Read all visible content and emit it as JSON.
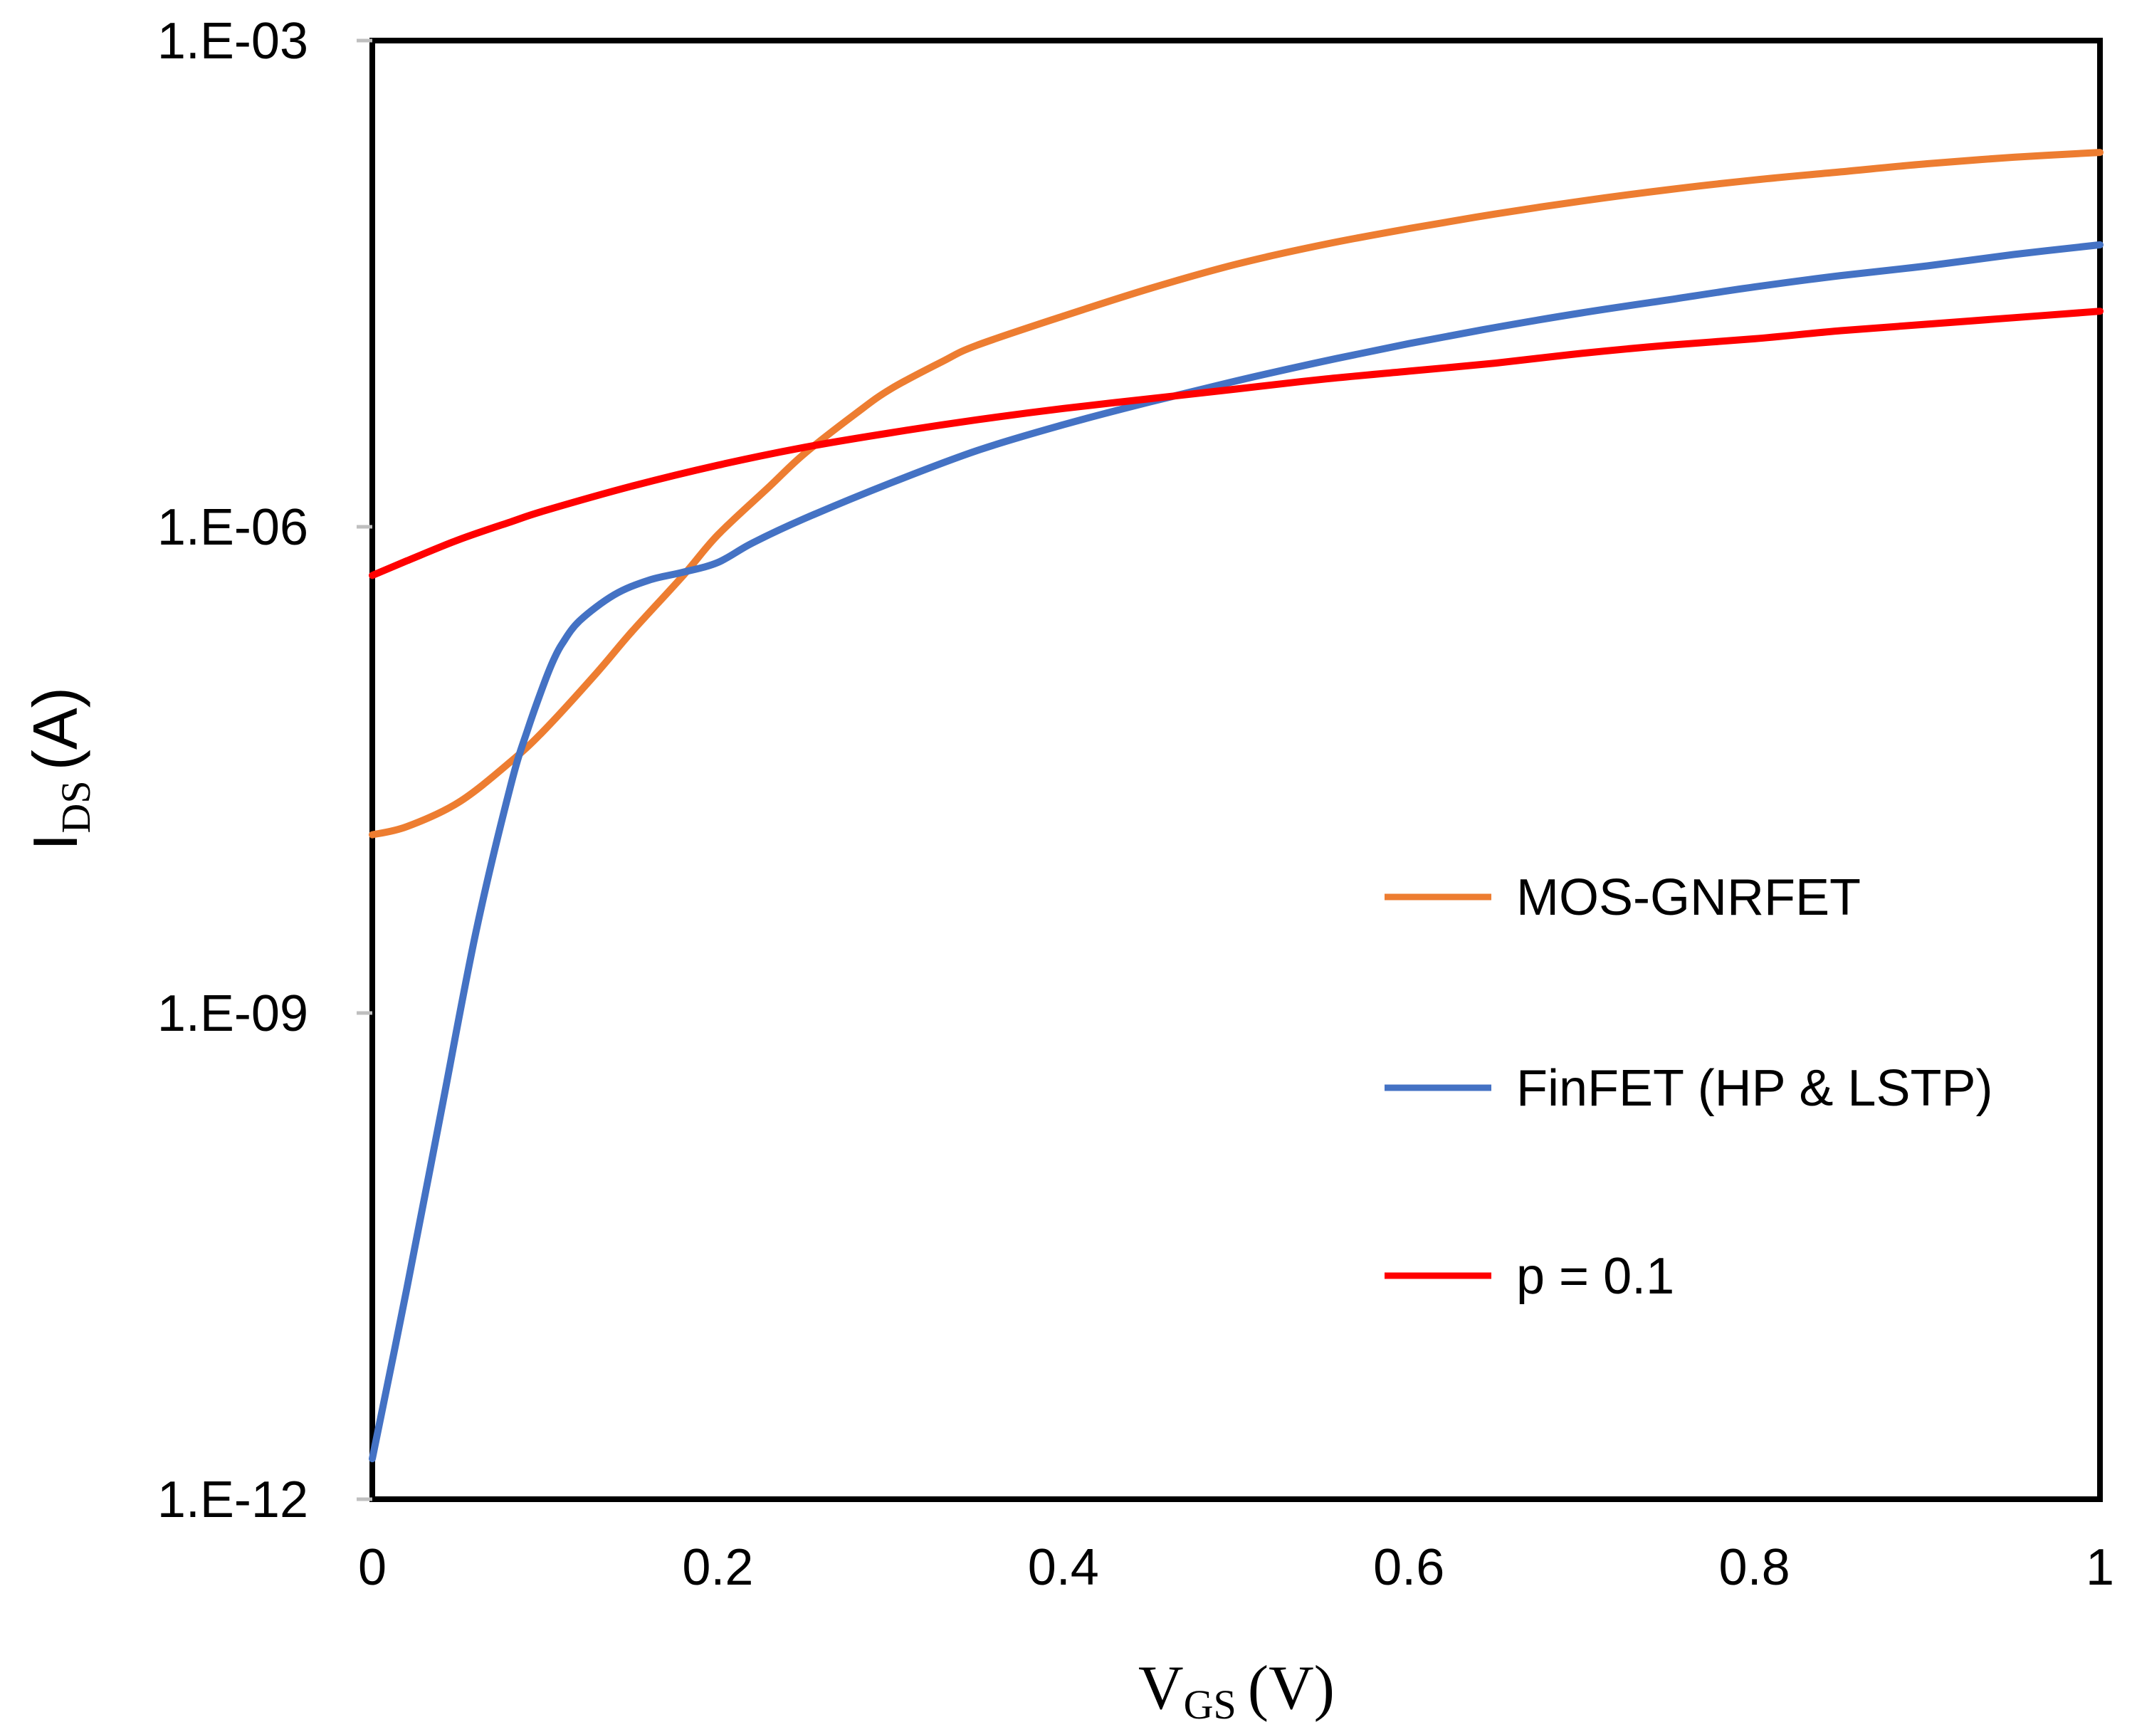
{
  "chart_data": {
    "type": "line",
    "title": "",
    "xlabel": {
      "main": "V",
      "sub": "GS",
      "unit": "(V)"
    },
    "ylabel": {
      "main": "I",
      "sub": "DS",
      "unit": "(A)"
    },
    "xlim": [
      0,
      1
    ],
    "ylim_log10": [
      -12,
      -3
    ],
    "y_scale": "log",
    "x_ticks": [
      "0",
      "0.2",
      "0.4",
      "0.6",
      "0.8",
      "1"
    ],
    "x_tick_values": [
      0,
      0.2,
      0.4,
      0.6,
      0.8,
      1
    ],
    "y_ticks": [
      "1.E-03",
      "1.E-06",
      "1.E-09",
      "1.E-12"
    ],
    "y_tick_values": [
      -3,
      -6,
      -9,
      -12
    ],
    "legend_position": "right-center",
    "series": [
      {
        "name": "MOS-GNRFET",
        "color": "#ED7D31",
        "x": [
          0,
          0.02,
          0.05,
          0.08,
          0.1,
          0.13,
          0.15,
          0.18,
          0.2,
          0.23,
          0.25,
          0.28,
          0.3,
          0.33,
          0.35,
          0.4,
          0.45,
          0.5,
          0.55,
          0.6,
          0.65,
          0.7,
          0.75,
          0.8,
          0.85,
          0.9,
          0.95,
          1.0
        ],
        "log10_y": [
          -7.9,
          -7.85,
          -7.7,
          -7.45,
          -7.25,
          -6.9,
          -6.65,
          -6.3,
          -6.05,
          -5.75,
          -5.55,
          -5.3,
          -5.15,
          -4.98,
          -4.88,
          -4.7,
          -4.53,
          -4.38,
          -4.26,
          -4.16,
          -4.07,
          -3.99,
          -3.92,
          -3.86,
          -3.81,
          -3.76,
          -3.72,
          -3.69
        ]
      },
      {
        "name": "FinFET (HP & LSTP)",
        "color": "#4472C4",
        "x": [
          0,
          0.02,
          0.04,
          0.06,
          0.08,
          0.09,
          0.1,
          0.105,
          0.11,
          0.12,
          0.14,
          0.16,
          0.18,
          0.2,
          0.22,
          0.25,
          0.3,
          0.35,
          0.4,
          0.45,
          0.5,
          0.55,
          0.6,
          0.65,
          0.7,
          0.75,
          0.8,
          0.85,
          0.9,
          0.95,
          1.0
        ],
        "log10_y": [
          -11.75,
          -10.7,
          -9.6,
          -8.5,
          -7.6,
          -7.25,
          -6.95,
          -6.82,
          -6.72,
          -6.58,
          -6.42,
          -6.33,
          -6.28,
          -6.22,
          -6.1,
          -5.95,
          -5.73,
          -5.53,
          -5.37,
          -5.23,
          -5.1,
          -4.98,
          -4.87,
          -4.77,
          -4.68,
          -4.6,
          -4.52,
          -4.45,
          -4.39,
          -4.32,
          -4.26
        ]
      },
      {
        "name": "p = 0.1",
        "color": "#FF0000",
        "x": [
          0,
          0.02,
          0.05,
          0.08,
          0.1,
          0.15,
          0.2,
          0.25,
          0.3,
          0.35,
          0.4,
          0.45,
          0.5,
          0.55,
          0.6,
          0.65,
          0.7,
          0.75,
          0.8,
          0.85,
          0.9,
          0.95,
          1.0
        ],
        "log10_y": [
          -6.3,
          -6.21,
          -6.08,
          -5.97,
          -5.9,
          -5.75,
          -5.62,
          -5.51,
          -5.42,
          -5.34,
          -5.27,
          -5.21,
          -5.15,
          -5.09,
          -5.04,
          -4.99,
          -4.93,
          -4.88,
          -4.84,
          -4.79,
          -4.75,
          -4.71,
          -4.67
        ]
      }
    ]
  }
}
